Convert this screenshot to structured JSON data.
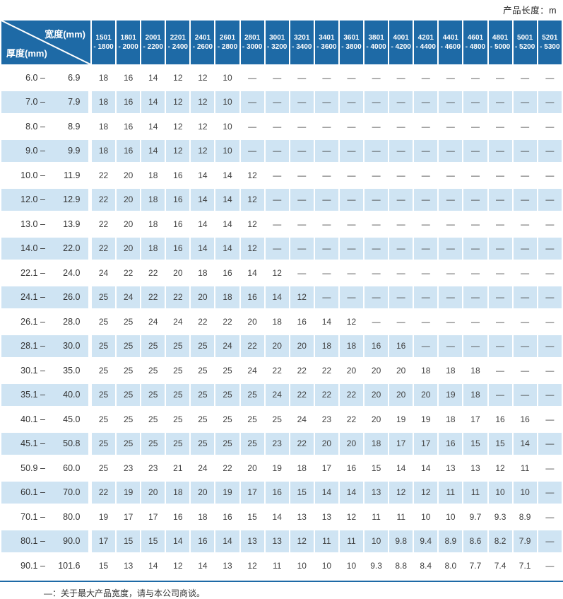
{
  "header": {
    "product_length_note": "产品长度：m"
  },
  "table": {
    "corner": {
      "width_label": "宽度(mm)",
      "thickness_label": "厚度(mm)"
    },
    "range_dash": "–",
    "columns": [
      {
        "line1": "1501",
        "line2": "- 1800"
      },
      {
        "line1": "1801",
        "line2": "- 2000"
      },
      {
        "line1": "2001",
        "line2": "- 2200"
      },
      {
        "line1": "2201",
        "line2": "- 2400"
      },
      {
        "line1": "2401",
        "line2": "- 2600"
      },
      {
        "line1": "2601",
        "line2": "- 2800"
      },
      {
        "line1": "2801",
        "line2": "- 3000"
      },
      {
        "line1": "3001",
        "line2": "- 3200"
      },
      {
        "line1": "3201",
        "line2": "- 3400"
      },
      {
        "line1": "3401",
        "line2": "- 3600"
      },
      {
        "line1": "3601",
        "line2": "- 3800"
      },
      {
        "line1": "3801",
        "line2": "- 4000"
      },
      {
        "line1": "4001",
        "line2": "- 4200"
      },
      {
        "line1": "4201",
        "line2": "- 4400"
      },
      {
        "line1": "4401",
        "line2": "- 4600"
      },
      {
        "line1": "4601",
        "line2": "- 4800"
      },
      {
        "line1": "4801",
        "line2": "- 5000"
      },
      {
        "line1": "5001",
        "line2": "- 5200"
      },
      {
        "line1": "5201",
        "line2": "- 5300"
      }
    ],
    "rows": [
      {
        "lo": "6.0",
        "hi": "6.9",
        "values": [
          "18",
          "16",
          "14",
          "12",
          "12",
          "10",
          "—",
          "—",
          "—",
          "—",
          "—",
          "—",
          "—",
          "—",
          "—",
          "—",
          "—",
          "—",
          "—"
        ]
      },
      {
        "lo": "7.0",
        "hi": "7.9",
        "values": [
          "18",
          "16",
          "14",
          "12",
          "12",
          "10",
          "—",
          "—",
          "—",
          "—",
          "—",
          "—",
          "—",
          "—",
          "—",
          "—",
          "—",
          "—",
          "—"
        ]
      },
      {
        "lo": "8.0",
        "hi": "8.9",
        "values": [
          "18",
          "16",
          "14",
          "12",
          "12",
          "10",
          "—",
          "—",
          "—",
          "—",
          "—",
          "—",
          "—",
          "—",
          "—",
          "—",
          "—",
          "—",
          "—"
        ]
      },
      {
        "lo": "9.0",
        "hi": "9.9",
        "values": [
          "18",
          "16",
          "14",
          "12",
          "12",
          "10",
          "—",
          "—",
          "—",
          "—",
          "—",
          "—",
          "—",
          "—",
          "—",
          "—",
          "—",
          "—",
          "—"
        ]
      },
      {
        "lo": "10.0",
        "hi": "11.9",
        "values": [
          "22",
          "20",
          "18",
          "16",
          "14",
          "14",
          "12",
          "—",
          "—",
          "—",
          "—",
          "—",
          "—",
          "—",
          "—",
          "—",
          "—",
          "—",
          "—"
        ]
      },
      {
        "lo": "12.0",
        "hi": "12.9",
        "values": [
          "22",
          "20",
          "18",
          "16",
          "14",
          "14",
          "12",
          "—",
          "—",
          "—",
          "—",
          "—",
          "—",
          "—",
          "—",
          "—",
          "—",
          "—",
          "—"
        ]
      },
      {
        "lo": "13.0",
        "hi": "13.9",
        "values": [
          "22",
          "20",
          "18",
          "16",
          "14",
          "14",
          "12",
          "—",
          "—",
          "—",
          "—",
          "—",
          "—",
          "—",
          "—",
          "—",
          "—",
          "—",
          "—"
        ]
      },
      {
        "lo": "14.0",
        "hi": "22.0",
        "values": [
          "22",
          "20",
          "18",
          "16",
          "14",
          "14",
          "12",
          "—",
          "—",
          "—",
          "—",
          "—",
          "—",
          "—",
          "—",
          "—",
          "—",
          "—",
          "—"
        ]
      },
      {
        "lo": "22.1",
        "hi": "24.0",
        "values": [
          "24",
          "22",
          "22",
          "20",
          "18",
          "16",
          "14",
          "12",
          "—",
          "—",
          "—",
          "—",
          "—",
          "—",
          "—",
          "—",
          "—",
          "—",
          "—"
        ]
      },
      {
        "lo": "24.1",
        "hi": "26.0",
        "values": [
          "25",
          "24",
          "22",
          "22",
          "20",
          "18",
          "16",
          "14",
          "12",
          "—",
          "—",
          "—",
          "—",
          "—",
          "—",
          "—",
          "—",
          "—",
          "—"
        ]
      },
      {
        "lo": "26.1",
        "hi": "28.0",
        "values": [
          "25",
          "25",
          "24",
          "24",
          "22",
          "22",
          "20",
          "18",
          "16",
          "14",
          "12",
          "—",
          "—",
          "—",
          "—",
          "—",
          "—",
          "—",
          "—"
        ]
      },
      {
        "lo": "28.1",
        "hi": "30.0",
        "values": [
          "25",
          "25",
          "25",
          "25",
          "25",
          "24",
          "22",
          "20",
          "20",
          "18",
          "18",
          "16",
          "16",
          "—",
          "—",
          "—",
          "—",
          "—",
          "—"
        ]
      },
      {
        "lo": "30.1",
        "hi": "35.0",
        "values": [
          "25",
          "25",
          "25",
          "25",
          "25",
          "25",
          "24",
          "22",
          "22",
          "22",
          "20",
          "20",
          "20",
          "18",
          "18",
          "18",
          "—",
          "—",
          "—"
        ]
      },
      {
        "lo": "35.1",
        "hi": "40.0",
        "values": [
          "25",
          "25",
          "25",
          "25",
          "25",
          "25",
          "25",
          "24",
          "22",
          "22",
          "22",
          "20",
          "20",
          "20",
          "19",
          "18",
          "—",
          "—",
          "—"
        ]
      },
      {
        "lo": "40.1",
        "hi": "45.0",
        "values": [
          "25",
          "25",
          "25",
          "25",
          "25",
          "25",
          "25",
          "25",
          "24",
          "23",
          "22",
          "20",
          "19",
          "19",
          "18",
          "17",
          "16",
          "16",
          "—"
        ]
      },
      {
        "lo": "45.1",
        "hi": "50.8",
        "values": [
          "25",
          "25",
          "25",
          "25",
          "25",
          "25",
          "25",
          "23",
          "22",
          "20",
          "20",
          "18",
          "17",
          "17",
          "16",
          "15",
          "15",
          "14",
          "—"
        ]
      },
      {
        "lo": "50.9",
        "hi": "60.0",
        "values": [
          "25",
          "23",
          "23",
          "21",
          "24",
          "22",
          "20",
          "19",
          "18",
          "17",
          "16",
          "15",
          "14",
          "14",
          "13",
          "13",
          "12",
          "11",
          "—"
        ]
      },
      {
        "lo": "60.1",
        "hi": "70.0",
        "values": [
          "22",
          "19",
          "20",
          "18",
          "20",
          "19",
          "17",
          "16",
          "15",
          "14",
          "14",
          "13",
          "12",
          "12",
          "11",
          "11",
          "10",
          "10",
          "—"
        ]
      },
      {
        "lo": "70.1",
        "hi": "80.0",
        "values": [
          "19",
          "17",
          "17",
          "16",
          "18",
          "16",
          "15",
          "14",
          "13",
          "13",
          "12",
          "11",
          "11",
          "10",
          "10",
          "9.7",
          "9.3",
          "8.9",
          "—"
        ]
      },
      {
        "lo": "80.1",
        "hi": "90.0",
        "values": [
          "17",
          "15",
          "15",
          "14",
          "16",
          "14",
          "13",
          "13",
          "12",
          "11",
          "11",
          "10",
          "9.8",
          "9.4",
          "8.9",
          "8.6",
          "8.2",
          "7.9",
          "—"
        ]
      },
      {
        "lo": "90.1",
        "hi": "101.6",
        "values": [
          "15",
          "13",
          "14",
          "12",
          "14",
          "13",
          "12",
          "11",
          "10",
          "10",
          "10",
          "9.3",
          "8.8",
          "8.4",
          "8.0",
          "7.7",
          "7.4",
          "7.1",
          "—"
        ]
      }
    ]
  },
  "footnote": "—：关于最大产品宽度，请与本公司商谈。",
  "colors": {
    "header_blue": "#1e6aa6",
    "row_alt_blue": "#cfe4f3",
    "rule_blue": "#1e6aa6"
  }
}
